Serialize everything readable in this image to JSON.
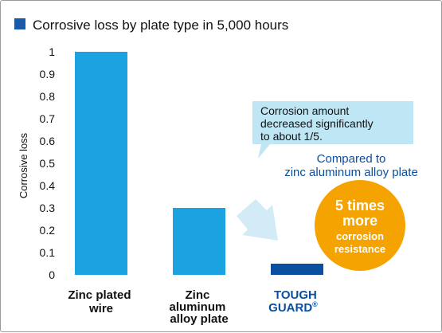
{
  "title": "Corrosive loss by plate type in 5,000 hours",
  "colors": {
    "title_square": "#1a5aaa",
    "bar": "#1aa3e0",
    "bar_highlight": "#0b4fa0",
    "callout_bg": "#bfe6f5",
    "badge": "#f5a300",
    "arrow": "#cbe8f5"
  },
  "chart_data": {
    "type": "bar",
    "title": "Corrosive loss by plate type in 5,000 hours",
    "ylabel": "Corrosive loss",
    "xlabel": "",
    "ylim": [
      0,
      1
    ],
    "yticks": [
      "0",
      "0.1",
      "0.2",
      "0.3",
      "0.4",
      "0.5",
      "0.6",
      "0.7",
      "0.8",
      "0.9",
      "1"
    ],
    "grid": false,
    "categories": [
      "Zinc plated wire",
      "Zinc aluminum alloy plate",
      "TOUGH GUARD®"
    ],
    "category_lines": [
      [
        "Zinc plated",
        "wire"
      ],
      [
        "Zinc",
        "aluminum",
        "alloy plate"
      ],
      [
        "TOUGH",
        "GUARD"
      ]
    ],
    "registered_mark": "®",
    "values": [
      1.0,
      0.3,
      0.05
    ],
    "annotations": {
      "callout_lines": [
        "Corrosion amount",
        "decreased significantly",
        "to about 1/5."
      ],
      "compare_lines": [
        "Compared to",
        "zinc aluminum alloy plate"
      ],
      "badge_lines": [
        "5 times",
        "more",
        "corrosion",
        "resistance"
      ]
    }
  }
}
